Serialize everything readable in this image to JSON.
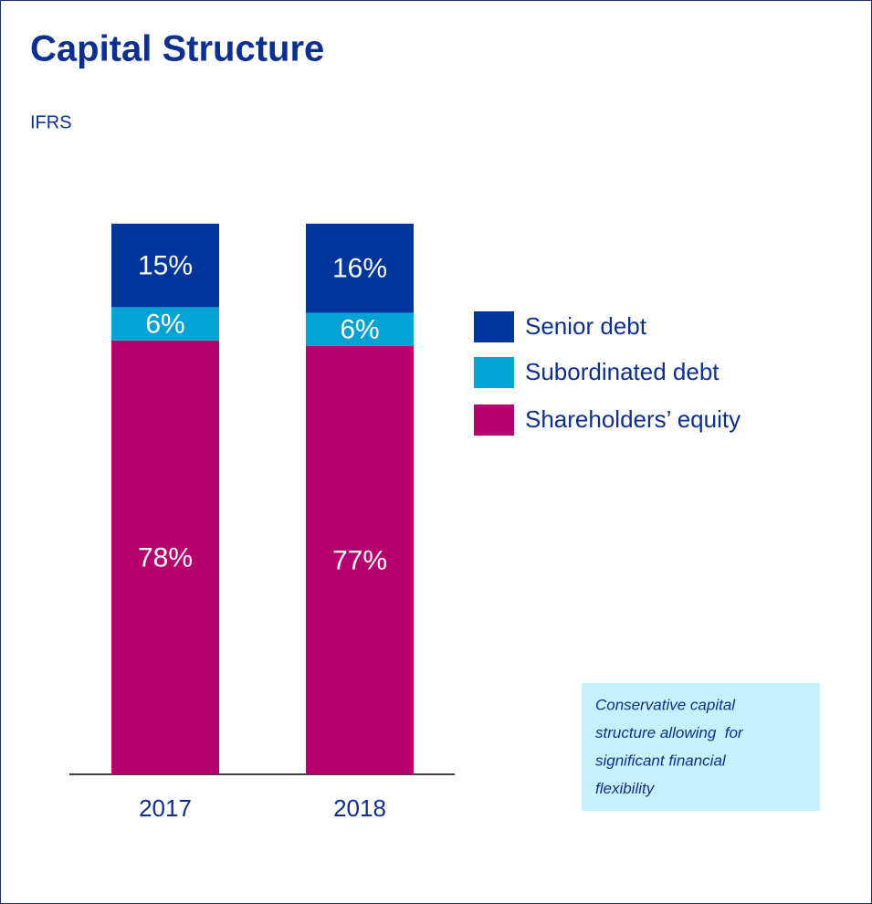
{
  "chart_data": {
    "type": "stacked_bar",
    "title": "Capital Structure",
    "subtitle": "IFRS",
    "categories": [
      "2017",
      "2018"
    ],
    "series": [
      {
        "name": "Senior debt",
        "color": "#00369c",
        "values": [
          15,
          16
        ],
        "value_labels": [
          "15%",
          "16%"
        ]
      },
      {
        "name": "Subordinated debt",
        "color": "#00a3d4",
        "values": [
          6,
          6
        ],
        "value_labels": [
          "6%",
          "6%"
        ]
      },
      {
        "name": "Shareholders’ equity",
        "color": "#b5006e",
        "values": [
          78,
          77
        ],
        "value_labels": [
          "78%",
          "77%"
        ]
      }
    ],
    "annotation": [
      "Conservative capital",
      "structure allowing  for",
      "significant financial",
      "flexibility"
    ]
  }
}
